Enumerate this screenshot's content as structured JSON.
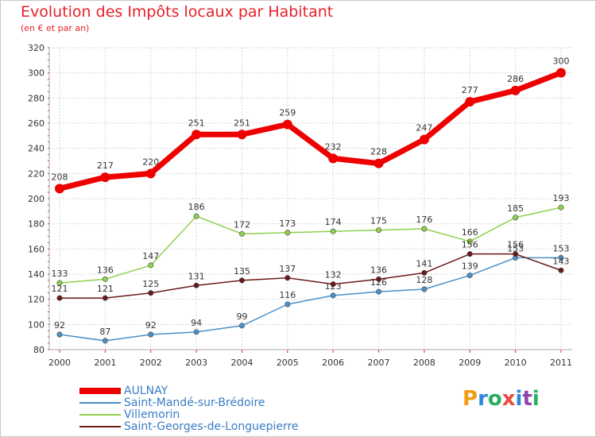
{
  "header": {
    "title": "Evolution des Impôts locaux par Habitant",
    "subtitle": "(en € et par an)"
  },
  "logo": {
    "text": "Proxiti",
    "letters": [
      "P",
      "r",
      "o",
      "x",
      "i",
      "t",
      "i"
    ],
    "colors": [
      "#f39c12",
      "#2e86de",
      "#27ae60",
      "#e74c3c",
      "#2e86de",
      "#8e44ad",
      "#27ae60"
    ]
  },
  "chart_data": {
    "type": "line",
    "x": [
      "2000",
      "2001",
      "2002",
      "2003",
      "2004",
      "2005",
      "2006",
      "2007",
      "2008",
      "2009",
      "2010",
      "2011"
    ],
    "ylim": [
      80,
      320
    ],
    "yticks": [
      80,
      100,
      120,
      140,
      160,
      180,
      200,
      220,
      240,
      260,
      280,
      300,
      320
    ],
    "grid": true,
    "legend_position": "bottom-left",
    "series": [
      {
        "name": "AULNAY",
        "color": "#ee0000",
        "values": [
          208,
          217,
          220,
          251,
          251,
          259,
          232,
          228,
          247,
          277,
          286,
          300
        ]
      },
      {
        "name": "Saint-Mandé-sur-Brédoire",
        "color": "#4a90c8",
        "values": [
          92,
          87,
          92,
          94,
          99,
          116,
          123,
          126,
          128,
          139,
          153,
          153
        ]
      },
      {
        "name": "Villemorin",
        "color": "#8ed14e",
        "values": [
          133,
          136,
          147,
          186,
          172,
          173,
          174,
          175,
          176,
          166,
          185,
          193
        ]
      },
      {
        "name": "Saint-Georges-de-Longuepierre",
        "color": "#6b1a1a",
        "values": [
          121,
          121,
          125,
          131,
          135,
          137,
          132,
          136,
          141,
          156,
          156,
          143
        ]
      }
    ]
  }
}
